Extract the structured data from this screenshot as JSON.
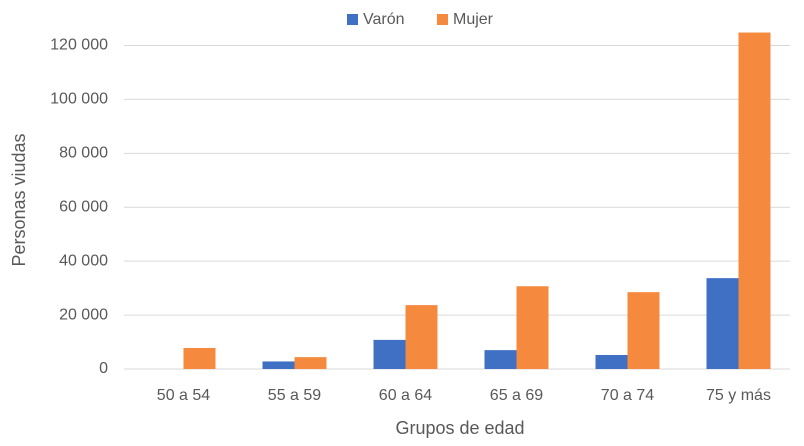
{
  "chart_data": {
    "type": "bar",
    "x_label": "Grupos de edad",
    "y_label": "Personas viudas",
    "categories": [
      "50 a 54",
      "55 a 59",
      "60 a 64",
      "65 a 69",
      "70 a 74",
      "75 y más"
    ],
    "series": [
      {
        "name": "Varón",
        "color": "#3f70c4",
        "values": [
          0,
          2800,
          10800,
          7000,
          5200,
          33700
        ]
      },
      {
        "name": "Mujer",
        "color": "#f58a3e",
        "values": [
          7800,
          4400,
          23700,
          30700,
          28500,
          124800
        ]
      }
    ],
    "ylim": [
      0,
      125000
    ],
    "yticks": [
      0,
      {
        "value": 20000,
        "label": "20 000"
      },
      {
        "value": 40000,
        "label": "40 000"
      },
      {
        "value": 60000,
        "label": "60 000"
      },
      {
        "value": 80000,
        "label": "80 000"
      },
      {
        "value": 100000,
        "label": "100 000"
      },
      {
        "value": 120000,
        "label": "120 000"
      }
    ],
    "grid": true,
    "legend": "top"
  }
}
